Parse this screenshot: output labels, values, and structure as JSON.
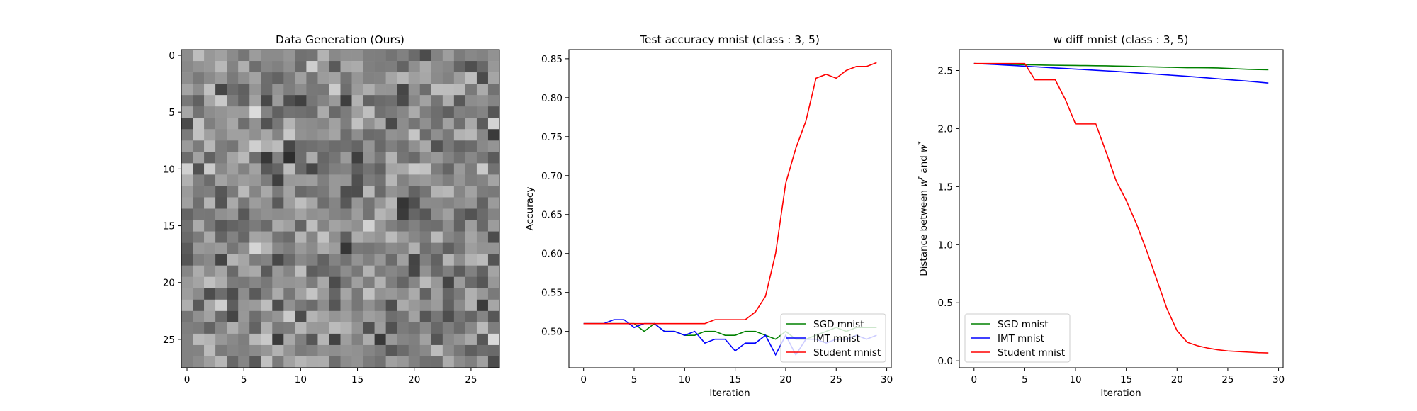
{
  "chart_data": [
    {
      "type": "heatmap",
      "title": "Data Generation (Ours)",
      "colormap": "gray",
      "rows": 28,
      "cols": 28,
      "xticks": [
        0,
        5,
        10,
        15,
        20,
        25
      ],
      "yticks": [
        0,
        5,
        10,
        15,
        20,
        25
      ],
      "xtick_labels": [
        "0",
        "5",
        "10",
        "15",
        "20",
        "25"
      ],
      "ytick_labels": [
        "0",
        "5",
        "10",
        "15",
        "20",
        "25"
      ]
    },
    {
      "type": "line",
      "title": "Test accuracy mnist (class : 3, 5)",
      "xlabel": "Iteration",
      "ylabel": "Accuracy",
      "xlim": [
        -1.45,
        30.45
      ],
      "ylim": [
        0.4533,
        0.8617
      ],
      "xticks": [
        0,
        5,
        10,
        15,
        20,
        25,
        30
      ],
      "yticks": [
        0.5,
        0.55,
        0.6,
        0.65,
        0.7,
        0.75,
        0.8,
        0.85
      ],
      "xtick_labels": [
        "0",
        "5",
        "10",
        "15",
        "20",
        "25",
        "30"
      ],
      "ytick_labels": [
        "0.50",
        "0.55",
        "0.60",
        "0.65",
        "0.70",
        "0.75",
        "0.80",
        "0.85"
      ],
      "legend": "bottom-right",
      "x": [
        0,
        1,
        2,
        3,
        4,
        5,
        6,
        7,
        8,
        9,
        10,
        11,
        12,
        13,
        14,
        15,
        16,
        17,
        18,
        19,
        20,
        21,
        22,
        23,
        24,
        25,
        26,
        27,
        28,
        29
      ],
      "series": [
        {
          "name": "SGD mnist",
          "color": "#008000",
          "values": [
            0.51,
            0.51,
            0.51,
            0.51,
            0.51,
            0.51,
            0.5,
            0.51,
            0.5,
            0.5,
            0.495,
            0.495,
            0.5,
            0.5,
            0.495,
            0.495,
            0.5,
            0.5,
            0.495,
            0.49,
            0.5,
            0.49,
            0.49,
            0.495,
            0.5,
            0.505,
            0.5,
            0.505,
            0.505,
            0.505
          ]
        },
        {
          "name": "IMT mnist",
          "color": "#0000ff",
          "values": [
            0.51,
            0.51,
            0.51,
            0.515,
            0.515,
            0.505,
            0.51,
            0.51,
            0.5,
            0.5,
            0.495,
            0.5,
            0.485,
            0.49,
            0.49,
            0.475,
            0.485,
            0.485,
            0.495,
            0.47,
            0.495,
            0.47,
            0.49,
            0.49,
            0.485,
            0.49,
            0.49,
            0.495,
            0.49,
            0.495
          ]
        },
        {
          "name": "Student mnist",
          "color": "#ff0000",
          "values": [
            0.51,
            0.51,
            0.51,
            0.51,
            0.51,
            0.51,
            0.51,
            0.51,
            0.51,
            0.51,
            0.51,
            0.51,
            0.51,
            0.515,
            0.515,
            0.515,
            0.515,
            0.525,
            0.545,
            0.6,
            0.69,
            0.735,
            0.77,
            0.825,
            0.83,
            0.825,
            0.835,
            0.84,
            0.84,
            0.845
          ]
        }
      ]
    },
    {
      "type": "line",
      "title": "w diff mnist (class : 3, 5)",
      "xlabel": "Iteration",
      "ylabel_prefix": "Distance between ",
      "ylabel_w1": "w",
      "ylabel_sup1": "t",
      "ylabel_mid": " and ",
      "ylabel_w2": "w",
      "ylabel_sup2": "*",
      "xlim": [
        -1.45,
        30.45
      ],
      "ylim": [
        -0.06,
        2.68
      ],
      "xticks": [
        0,
        5,
        10,
        15,
        20,
        25,
        30
      ],
      "yticks": [
        0.0,
        0.5,
        1.0,
        1.5,
        2.0,
        2.5
      ],
      "xtick_labels": [
        "0",
        "5",
        "10",
        "15",
        "20",
        "25",
        "30"
      ],
      "ytick_labels": [
        "0.0",
        "0.5",
        "1.0",
        "1.5",
        "2.0",
        "2.5"
      ],
      "legend": "bottom-left",
      "x": [
        0,
        1,
        2,
        3,
        4,
        5,
        6,
        7,
        8,
        9,
        10,
        11,
        12,
        13,
        14,
        15,
        16,
        17,
        18,
        19,
        20,
        21,
        22,
        23,
        24,
        25,
        26,
        27,
        28,
        29
      ],
      "series": [
        {
          "name": "SGD mnist",
          "color": "#008000",
          "values": [
            2.56,
            2.558,
            2.556,
            2.554,
            2.552,
            2.55,
            2.548,
            2.546,
            2.545,
            2.544,
            2.543,
            2.542,
            2.541,
            2.54,
            2.538,
            2.536,
            2.534,
            2.532,
            2.53,
            2.528,
            2.526,
            2.524,
            2.524,
            2.523,
            2.522,
            2.518,
            2.514,
            2.51,
            2.508,
            2.506
          ]
        },
        {
          "name": "IMT mnist",
          "color": "#0000ff",
          "values": [
            2.56,
            2.556,
            2.552,
            2.547,
            2.542,
            2.537,
            2.532,
            2.527,
            2.522,
            2.517,
            2.512,
            2.507,
            2.502,
            2.497,
            2.492,
            2.486,
            2.48,
            2.474,
            2.468,
            2.462,
            2.456,
            2.45,
            2.443,
            2.436,
            2.429,
            2.422,
            2.415,
            2.408,
            2.4,
            2.392
          ]
        },
        {
          "name": "Student mnist",
          "color": "#ff0000",
          "values": [
            2.56,
            2.56,
            2.56,
            2.56,
            2.56,
            2.56,
            2.42,
            2.42,
            2.42,
            2.25,
            2.04,
            2.04,
            2.04,
            1.8,
            1.55,
            1.38,
            1.18,
            0.95,
            0.7,
            0.45,
            0.26,
            0.16,
            0.13,
            0.11,
            0.095,
            0.085,
            0.08,
            0.075,
            0.07,
            0.068
          ]
        }
      ]
    }
  ]
}
